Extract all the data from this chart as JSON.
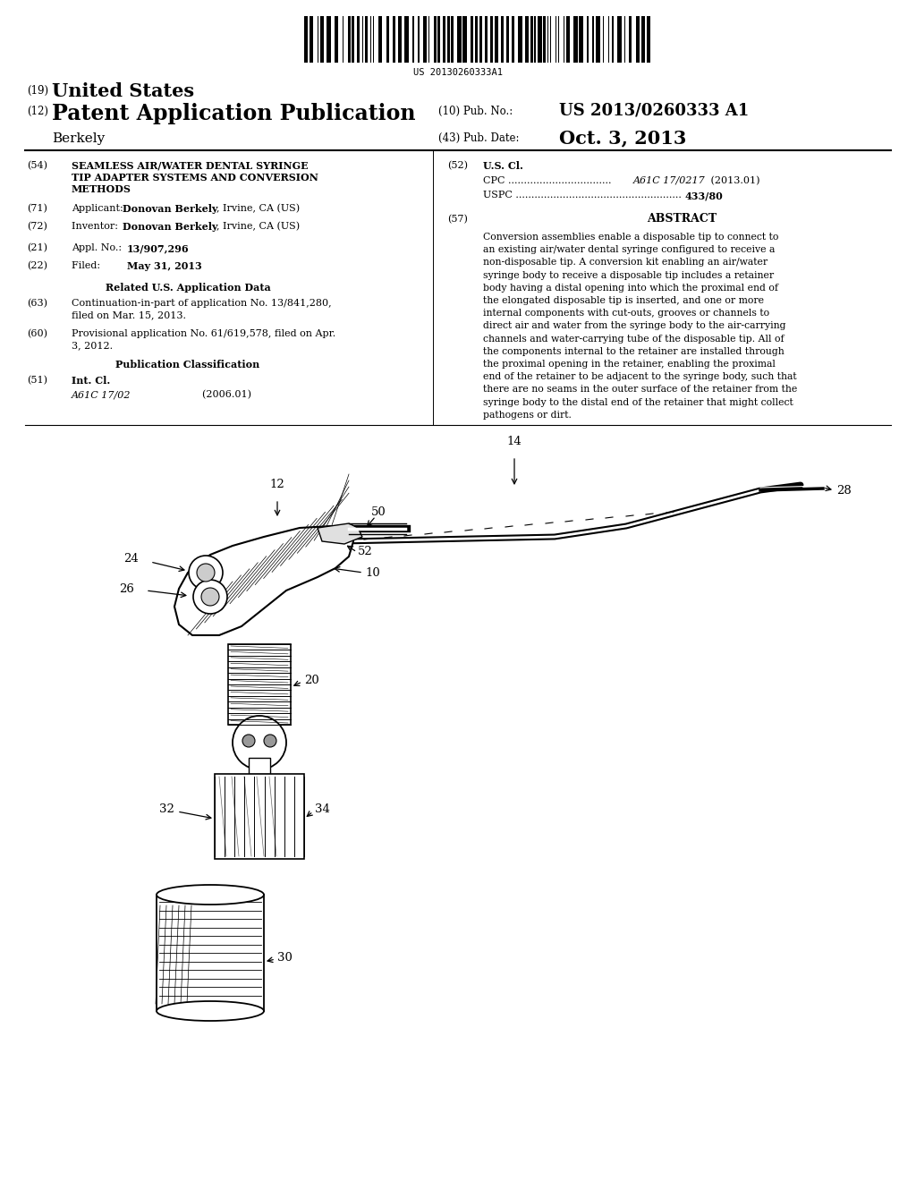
{
  "background_color": "#ffffff",
  "barcode_text": "US 20130260333A1",
  "header": {
    "country_number": "(19)",
    "country": "United States",
    "type_number": "(12)",
    "type": "Patent Application Publication",
    "pub_no_label": "(10) Pub. No.:",
    "pub_no": "US 2013/0260333 A1",
    "inventor_label": "Berkely",
    "pub_date_label": "(43) Pub. Date:",
    "pub_date": "Oct. 3, 2013"
  },
  "left_column": {
    "title_num": "(54)",
    "title_line1": "SEAMLESS AIR/WATER DENTAL SYRINGE",
    "title_line2": "TIP ADAPTER SYSTEMS AND CONVERSION",
    "title_line3": "METHODS",
    "applicant_num": "(71)",
    "applicant_label": "Applicant:",
    "applicant_bold": "Donovan Berkely",
    "applicant_rest": ", Irvine, CA (US)",
    "inventor_num": "(72)",
    "inventor_label": "Inventor:   ",
    "inventor_bold": "Donovan Berkely",
    "inventor_rest": ", Irvine, CA (US)",
    "appl_num_label": "(21)",
    "appl_no_label": "Appl. No.: ",
    "appl_no_bold": "13/907,296",
    "filed_num": "(22)",
    "filed_label": "Filed:        ",
    "filed_bold": "May 31, 2013",
    "related_header": "Related U.S. Application Data",
    "continuation_num": "(63)",
    "continuation_line1": "Continuation-in-part of application No. 13/841,280,",
    "continuation_line2": "filed on Mar. 15, 2013.",
    "provisional_num": "(60)",
    "provisional_line1": "Provisional application No. 61/619,578, filed on Apr.",
    "provisional_line2": "3, 2012.",
    "pub_class_header": "Publication Classification",
    "int_cl_num": "(51)",
    "int_cl_label": "Int. Cl.",
    "int_cl_code": "A61C 17/02",
    "int_cl_year": "                (2006.01)"
  },
  "right_column": {
    "us_cl_num": "(52)",
    "us_cl_label": "U.S. Cl.",
    "cpc_line": "CPC .................................",
    "cpc_code": "A61C 17/0217",
    "cpc_year": " (2013.01)",
    "uspc_line": "USPC .....................................................",
    "uspc_code": "433/80",
    "abstract_num": "(57)",
    "abstract_header": "ABSTRACT",
    "abstract_lines": [
      "Conversion assemblies enable a disposable tip to connect to",
      "an existing air/water dental syringe configured to receive a",
      "non-disposable tip. A conversion kit enabling an air/water",
      "syringe body to receive a disposable tip includes a retainer",
      "body having a distal opening into which the proximal end of",
      "the elongated disposable tip is inserted, and one or more",
      "internal components with cut-outs, grooves or channels to",
      "direct air and water from the syringe body to the air-carrying",
      "channels and water-carrying tube of the disposable tip. All of",
      "the components internal to the retainer are installed through",
      "the proximal opening in the retainer, enabling the proximal",
      "end of the retainer to be adjacent to the syringe body, such that",
      "there are no seams in the outer surface of the retainer from the",
      "syringe body to the distal end of the retainer that might collect",
      "pathogens or dirt."
    ]
  }
}
